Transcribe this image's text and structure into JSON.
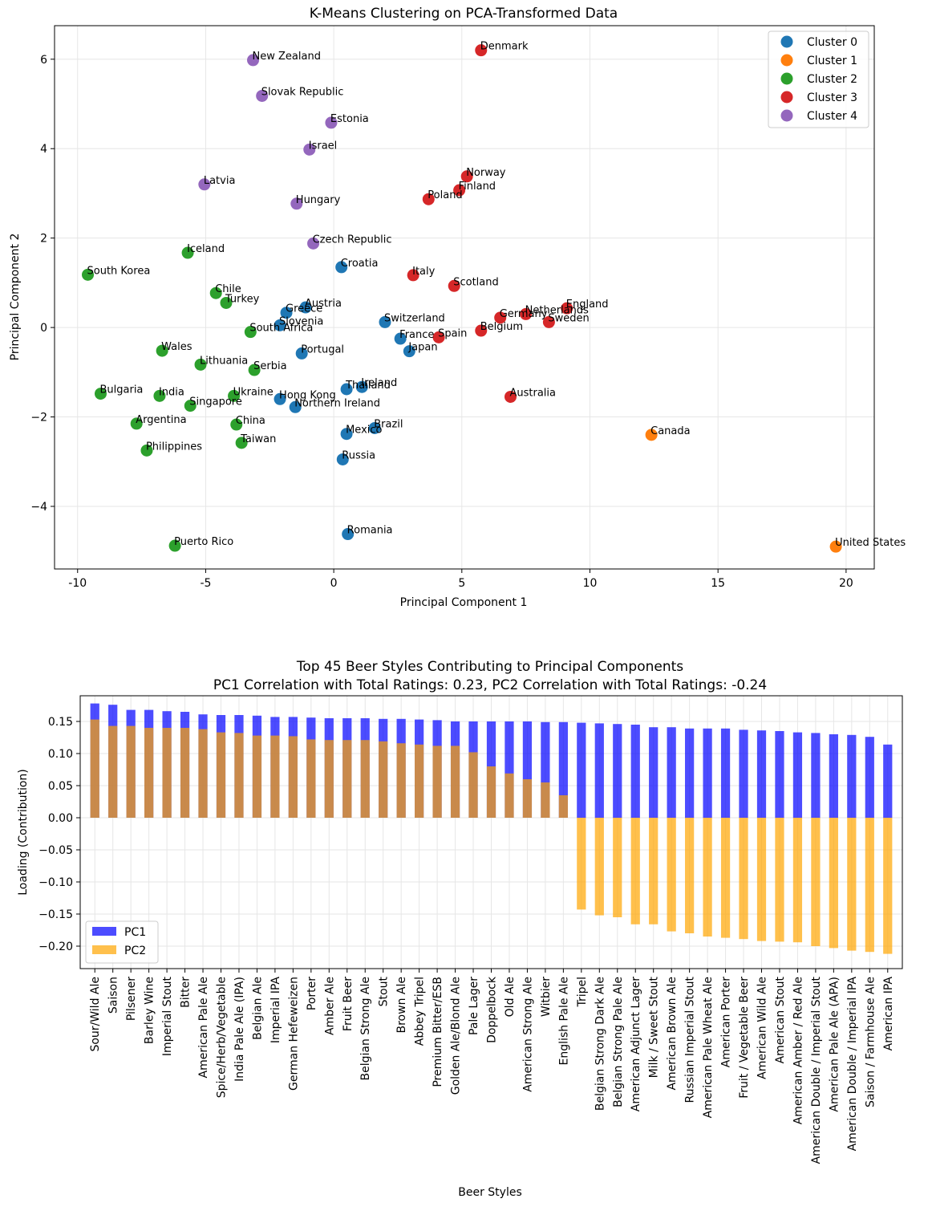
{
  "chart_data": [
    {
      "type": "scatter",
      "title": "K-Means Clustering on PCA-Transformed Data",
      "xlabel": "Principal Component 1",
      "ylabel": "Principal Component 2",
      "xlim": [
        -10.9,
        21.1
      ],
      "ylim": [
        -5.4,
        6.75
      ],
      "xticks": [
        -10,
        -5,
        0,
        5,
        10,
        15,
        20
      ],
      "yticks": [
        -4,
        -2,
        0,
        2,
        4,
        6
      ],
      "grid": true,
      "legend_position": "top-right",
      "series": [
        {
          "name": "Cluster 0",
          "color": "#1f77b4",
          "points": [
            {
              "label": "Croatia",
              "x": 0.3,
              "y": 1.35
            },
            {
              "label": "Austria",
              "x": -1.1,
              "y": 0.45
            },
            {
              "label": "Greece",
              "x": -1.85,
              "y": 0.33
            },
            {
              "label": "Slovenia",
              "x": -2.1,
              "y": 0.05
            },
            {
              "label": "Switzerland",
              "x": 2.0,
              "y": 0.12
            },
            {
              "label": "France",
              "x": 2.6,
              "y": -0.25
            },
            {
              "label": "Japan",
              "x": 2.95,
              "y": -0.53
            },
            {
              "label": "Portugal",
              "x": -1.25,
              "y": -0.58
            },
            {
              "label": "Ireland",
              "x": 1.1,
              "y": -1.33
            },
            {
              "label": "Thailand",
              "x": 0.5,
              "y": -1.38
            },
            {
              "label": "Hong Kong",
              "x": -2.1,
              "y": -1.6
            },
            {
              "label": "Northern Ireland",
              "x": -1.5,
              "y": -1.78
            },
            {
              "label": "Brazil",
              "x": 1.6,
              "y": -2.25
            },
            {
              "label": "Mexico",
              "x": 0.5,
              "y": -2.38
            },
            {
              "label": "Russia",
              "x": 0.35,
              "y": -2.95
            },
            {
              "label": "Romania",
              "x": 0.55,
              "y": -4.62
            }
          ]
        },
        {
          "name": "Cluster 1",
          "color": "#ff7f0e",
          "points": [
            {
              "label": "Canada",
              "x": 12.4,
              "y": -2.4
            },
            {
              "label": "United States",
              "x": 19.6,
              "y": -4.9
            }
          ]
        },
        {
          "name": "Cluster 2",
          "color": "#2ca02c",
          "points": [
            {
              "label": "Iceland",
              "x": -5.7,
              "y": 1.67
            },
            {
              "label": "South Korea",
              "x": -9.6,
              "y": 1.18
            },
            {
              "label": "Chile",
              "x": -4.6,
              "y": 0.77
            },
            {
              "label": "Turkey",
              "x": -4.2,
              "y": 0.55
            },
            {
              "label": "South Africa",
              "x": -3.25,
              "y": -0.1
            },
            {
              "label": "Wales",
              "x": -6.7,
              "y": -0.52
            },
            {
              "label": "Lithuania",
              "x": -5.2,
              "y": -0.83
            },
            {
              "label": "Serbia",
              "x": -3.1,
              "y": -0.95
            },
            {
              "label": "Bulgaria",
              "x": -9.1,
              "y": -1.48
            },
            {
              "label": "India",
              "x": -6.8,
              "y": -1.53
            },
            {
              "label": "Ukraine",
              "x": -3.9,
              "y": -1.53
            },
            {
              "label": "Singapore",
              "x": -5.6,
              "y": -1.75
            },
            {
              "label": "Argentina",
              "x": -7.7,
              "y": -2.15
            },
            {
              "label": "China",
              "x": -3.8,
              "y": -2.17
            },
            {
              "label": "Philippines",
              "x": -7.3,
              "y": -2.75
            },
            {
              "label": "Taiwan",
              "x": -3.6,
              "y": -2.58
            },
            {
              "label": "Puerto Rico",
              "x": -6.2,
              "y": -4.88
            }
          ]
        },
        {
          "name": "Cluster 3",
          "color": "#d62728",
          "points": [
            {
              "label": "Denmark",
              "x": 5.75,
              "y": 6.2
            },
            {
              "label": "Norway",
              "x": 5.2,
              "y": 3.38
            },
            {
              "label": "Finland",
              "x": 4.9,
              "y": 3.07
            },
            {
              "label": "Poland",
              "x": 3.7,
              "y": 2.87
            },
            {
              "label": "Italy",
              "x": 3.1,
              "y": 1.17
            },
            {
              "label": "Scotland",
              "x": 4.7,
              "y": 0.93
            },
            {
              "label": "England",
              "x": 9.1,
              "y": 0.43
            },
            {
              "label": "Netherlands",
              "x": 7.5,
              "y": 0.3
            },
            {
              "label": "Germany",
              "x": 6.5,
              "y": 0.22
            },
            {
              "label": "Sweden",
              "x": 8.4,
              "y": 0.12
            },
            {
              "label": "Belgium",
              "x": 5.75,
              "y": -0.07
            },
            {
              "label": "Spain",
              "x": 4.1,
              "y": -0.22
            },
            {
              "label": "Australia",
              "x": 6.9,
              "y": -1.55
            }
          ]
        },
        {
          "name": "Cluster 4",
          "color": "#9467bd",
          "points": [
            {
              "label": "New Zealand",
              "x": -3.15,
              "y": 5.98
            },
            {
              "label": "Slovak Republic",
              "x": -2.8,
              "y": 5.18
            },
            {
              "label": "Estonia",
              "x": -0.1,
              "y": 4.58
            },
            {
              "label": "Israel",
              "x": -0.95,
              "y": 3.98
            },
            {
              "label": "Latvia",
              "x": -5.05,
              "y": 3.2
            },
            {
              "label": "Hungary",
              "x": -1.45,
              "y": 2.77
            },
            {
              "label": "Czech Republic",
              "x": -0.8,
              "y": 1.88
            }
          ]
        }
      ]
    },
    {
      "type": "bar",
      "title": "Top 45 Beer Styles Contributing to Principal Components",
      "subtitle": "PC1 Correlation with Total Ratings: 0.23, PC2 Correlation with Total Ratings: -0.24",
      "xlabel": "Beer Styles",
      "ylabel": "Loading (Contribution)",
      "ylim": [
        -0.235,
        0.19
      ],
      "yticks": [
        0.15,
        0.1,
        0.05,
        0.0,
        -0.05,
        -0.1,
        -0.15,
        -0.2
      ],
      "ytick_labels": [
        "0.15",
        "0.10",
        "0.05",
        "0.00",
        "−0.05",
        "−0.10",
        "−0.15",
        "−0.20"
      ],
      "grid": true,
      "legend_position": "bottom-left",
      "categories": [
        "Sour/Wild Ale",
        "Saison",
        "Pilsener",
        "Barley Wine",
        "Imperial Stout",
        "Bitter",
        "American Pale Ale",
        "Spice/Herb/Vegetable",
        "India Pale Ale (IPA)",
        "Belgian Ale",
        "Imperial IPA",
        "German Hefeweizen",
        "Porter",
        "Amber Ale",
        "Fruit Beer",
        "Belgian Strong Ale",
        "Stout",
        "Brown Ale",
        "Abbey Tripel",
        "Premium Bitter/ESB",
        "Golden Ale/Blond Ale",
        "Pale Lager",
        "Doppelbock",
        "Old Ale",
        "American Strong Ale",
        "Witbier",
        "English Pale Ale",
        "Tripel",
        "Belgian Strong Dark Ale",
        "Belgian Strong Pale Ale",
        "American Adjunct Lager",
        "Milk / Sweet Stout",
        "American Brown Ale",
        "Russian Imperial Stout",
        "American Pale Wheat Ale",
        "American Porter",
        "Fruit / Vegetable Beer",
        "American Wild Ale",
        "American Stout",
        "American Amber / Red Ale",
        "American Double / Imperial Stout",
        "American Pale Ale (APA)",
        "American Double / Imperial IPA",
        "Saison / Farmhouse Ale",
        "American IPA"
      ],
      "series": [
        {
          "name": "PC1",
          "color": "#0000ff",
          "opacity": 0.7,
          "values": [
            0.178,
            0.176,
            0.168,
            0.168,
            0.166,
            0.165,
            0.161,
            0.16,
            0.16,
            0.159,
            0.157,
            0.157,
            0.156,
            0.155,
            0.155,
            0.155,
            0.154,
            0.154,
            0.153,
            0.152,
            0.15,
            0.15,
            0.15,
            0.15,
            0.15,
            0.149,
            0.149,
            0.148,
            0.147,
            0.146,
            0.145,
            0.141,
            0.141,
            0.139,
            0.139,
            0.139,
            0.137,
            0.136,
            0.135,
            0.133,
            0.132,
            0.13,
            0.129,
            0.126,
            0.114
          ]
        },
        {
          "name": "PC2",
          "color": "#ffa500",
          "opacity": 0.7,
          "values": [
            0.153,
            0.143,
            0.143,
            0.14,
            0.14,
            0.14,
            0.138,
            0.133,
            0.132,
            0.128,
            0.128,
            0.127,
            0.122,
            0.121,
            0.121,
            0.121,
            0.119,
            0.116,
            0.114,
            0.112,
            0.112,
            0.102,
            0.08,
            0.069,
            0.06,
            0.055,
            0.035,
            -0.143,
            -0.152,
            -0.155,
            -0.166,
            -0.166,
            -0.177,
            -0.18,
            -0.185,
            -0.187,
            -0.189,
            -0.192,
            -0.193,
            -0.194,
            -0.2,
            -0.203,
            -0.207,
            -0.209,
            -0.212
          ]
        }
      ]
    }
  ]
}
